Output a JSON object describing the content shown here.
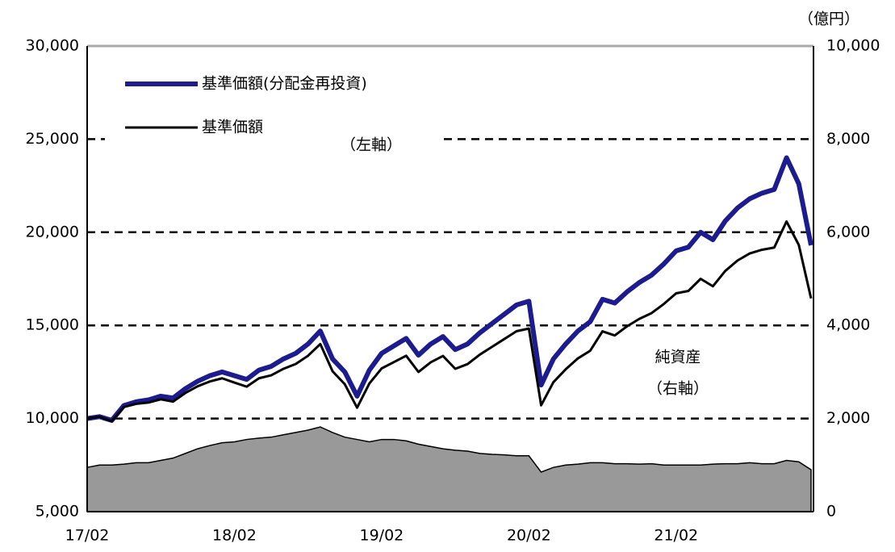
{
  "chart_data": {
    "type": "line",
    "x": [
      "17/02",
      "17/03",
      "17/04",
      "17/05",
      "17/06",
      "17/07",
      "17/08",
      "17/09",
      "17/10",
      "17/11",
      "17/12",
      "18/01",
      "18/02",
      "18/03",
      "18/04",
      "18/05",
      "18/06",
      "18/07",
      "18/08",
      "18/09",
      "18/10",
      "18/11",
      "18/12",
      "19/01",
      "19/02",
      "19/03",
      "19/04",
      "19/05",
      "19/06",
      "19/07",
      "19/08",
      "19/09",
      "19/10",
      "19/11",
      "19/12",
      "20/01",
      "20/02",
      "20/03",
      "20/04",
      "20/05",
      "20/06",
      "20/07",
      "20/08",
      "20/09",
      "20/10",
      "20/11",
      "20/12",
      "21/01",
      "21/02",
      "21/03",
      "21/04",
      "21/05",
      "21/06",
      "21/07",
      "21/08",
      "21/09",
      "21/10",
      "21/11",
      "21/12",
      "22/01"
    ],
    "xticks": [
      "17/02",
      "18/02",
      "19/02",
      "20/02",
      "21/02"
    ],
    "series": [
      {
        "name": "基準価額(分配金再投資)",
        "color": "#1c1c8e",
        "values": [
          10000,
          10100,
          9900,
          10700,
          10900,
          11000,
          11200,
          11100,
          11600,
          12000,
          12300,
          12500,
          12300,
          12100,
          12600,
          12800,
          13200,
          13500,
          14000,
          14700,
          13200,
          12500,
          11200,
          12600,
          13500,
          13900,
          14300,
          13400,
          14000,
          14400,
          13700,
          14000,
          14600,
          15100,
          15600,
          16100,
          16300,
          11800,
          13200,
          14000,
          14700,
          15200,
          16400,
          16200,
          16800,
          17300,
          17700,
          18300,
          19000,
          19200,
          20000,
          19600,
          20600,
          21300,
          21800,
          22100,
          22300,
          24000,
          22600,
          19300
        ]
      },
      {
        "name": "基準価額",
        "color": "#000000",
        "values": [
          10000,
          10100,
          9850,
          10620,
          10790,
          10860,
          11030,
          10910,
          11370,
          11730,
          11990,
          12160,
          11930,
          11710,
          12160,
          12320,
          12670,
          12930,
          13370,
          14000,
          12540,
          11840,
          10580,
          11880,
          12690,
          13030,
          13370,
          12500,
          13020,
          13360,
          12670,
          12920,
          13430,
          13850,
          14270,
          14690,
          14830,
          10710,
          11950,
          12640,
          13230,
          13640,
          14680,
          14460,
          14950,
          15350,
          15660,
          16150,
          16720,
          16850,
          17500,
          17100,
          17920,
          18480,
          18860,
          19060,
          19180,
          20580,
          19320,
          16450
        ]
      },
      {
        "type": "area",
        "axis": "y2",
        "color": "#999999",
        "values": [
          950,
          1000,
          1000,
          1020,
          1050,
          1050,
          1100,
          1150,
          1250,
          1350,
          1420,
          1480,
          1500,
          1550,
          1580,
          1600,
          1650,
          1700,
          1750,
          1820,
          1700,
          1600,
          1550,
          1500,
          1550,
          1550,
          1520,
          1450,
          1400,
          1350,
          1320,
          1300,
          1250,
          1230,
          1220,
          1200,
          1200,
          850,
          950,
          1000,
          1020,
          1050,
          1050,
          1030,
          1030,
          1020,
          1030,
          1000,
          1000,
          1000,
          1000,
          1020,
          1030,
          1030,
          1050,
          1030,
          1030,
          1100,
          1070,
          900
        ]
      }
    ],
    "ylim": [
      5000,
      30000
    ],
    "yticks": [
      {
        "value": 5000,
        "label": "5,000"
      },
      {
        "value": 10000,
        "label": "10,000"
      },
      {
        "value": 15000,
        "label": "15,000"
      },
      {
        "value": 20000,
        "label": "20,000"
      },
      {
        "value": 25000,
        "label": "25,000"
      },
      {
        "value": 30000,
        "label": "30,000"
      }
    ],
    "y2lim": [
      0,
      10000
    ],
    "y2ticks": [
      0,
      {
        "value": 2000,
        "label": "2,000"
      },
      {
        "value": 4000,
        "label": "4,000"
      },
      {
        "value": 6000,
        "label": "6,000"
      },
      {
        "value": 8000,
        "label": "8,000"
      },
      {
        "value": 10000,
        "label": "10,000"
      }
    ],
    "y2_unit": "（億円）",
    "annotations": [
      "（左軸）",
      "純資産",
      "（右軸）"
    ],
    "grid": true,
    "legend": "upper left"
  }
}
